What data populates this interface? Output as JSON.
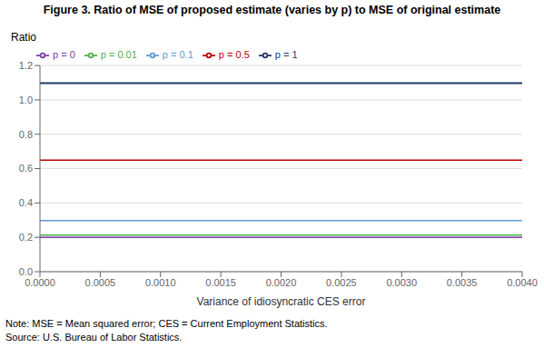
{
  "chart_data": {
    "type": "line",
    "title": "Figure 3. Ratio of MSE of proposed estimate (varies by p) to MSE of original estimate",
    "y_label": "Ratio",
    "x_label": "Variance of idiosyncratic CES error",
    "annotations": [
      "Note: MSE = Mean squared error; CES = Current Employment Statistics.",
      "Source: U.S. Bureau of Labor Statistics."
    ],
    "x": [
      0.0,
      0.004
    ],
    "series": [
      {
        "name": "p = 0",
        "color": "#7B3FAC",
        "values": [
          0.2,
          0.2
        ]
      },
      {
        "name": "p = 0.01",
        "color": "#4CAF50",
        "values": [
          0.213,
          0.213
        ]
      },
      {
        "name": "p = 0.1",
        "color": "#5B9BD5",
        "values": [
          0.298,
          0.298
        ]
      },
      {
        "name": "p = 0.5",
        "color": "#C00000",
        "values": [
          0.649,
          0.649
        ]
      },
      {
        "name": "p = 1",
        "color": "#1F3864",
        "values": [
          1.098,
          1.098
        ]
      }
    ],
    "xlim": [
      0.0,
      0.004
    ],
    "ylim": [
      0.0,
      1.2
    ],
    "xticks": [
      {
        "value": 0,
        "label": "0.0000"
      },
      {
        "value": 0.0005,
        "label": "0.0005"
      },
      {
        "value": 0.001,
        "label": "0.0010"
      },
      {
        "value": 0.0015,
        "label": "0.0015"
      },
      {
        "value": 0.002,
        "label": "0.0020"
      },
      {
        "value": 0.0025,
        "label": "0.0025"
      },
      {
        "value": 0.003,
        "label": "0.0030"
      },
      {
        "value": 0.0035,
        "label": "0.0035"
      },
      {
        "value": 0.004,
        "label": "0.0040"
      }
    ],
    "yticks": [
      {
        "value": 0,
        "label": "0.0"
      },
      0.2,
      0.4,
      0.6,
      0.8,
      {
        "value": 1,
        "label": "1.0"
      },
      1.2
    ],
    "grid": true,
    "legend": "upper left"
  }
}
